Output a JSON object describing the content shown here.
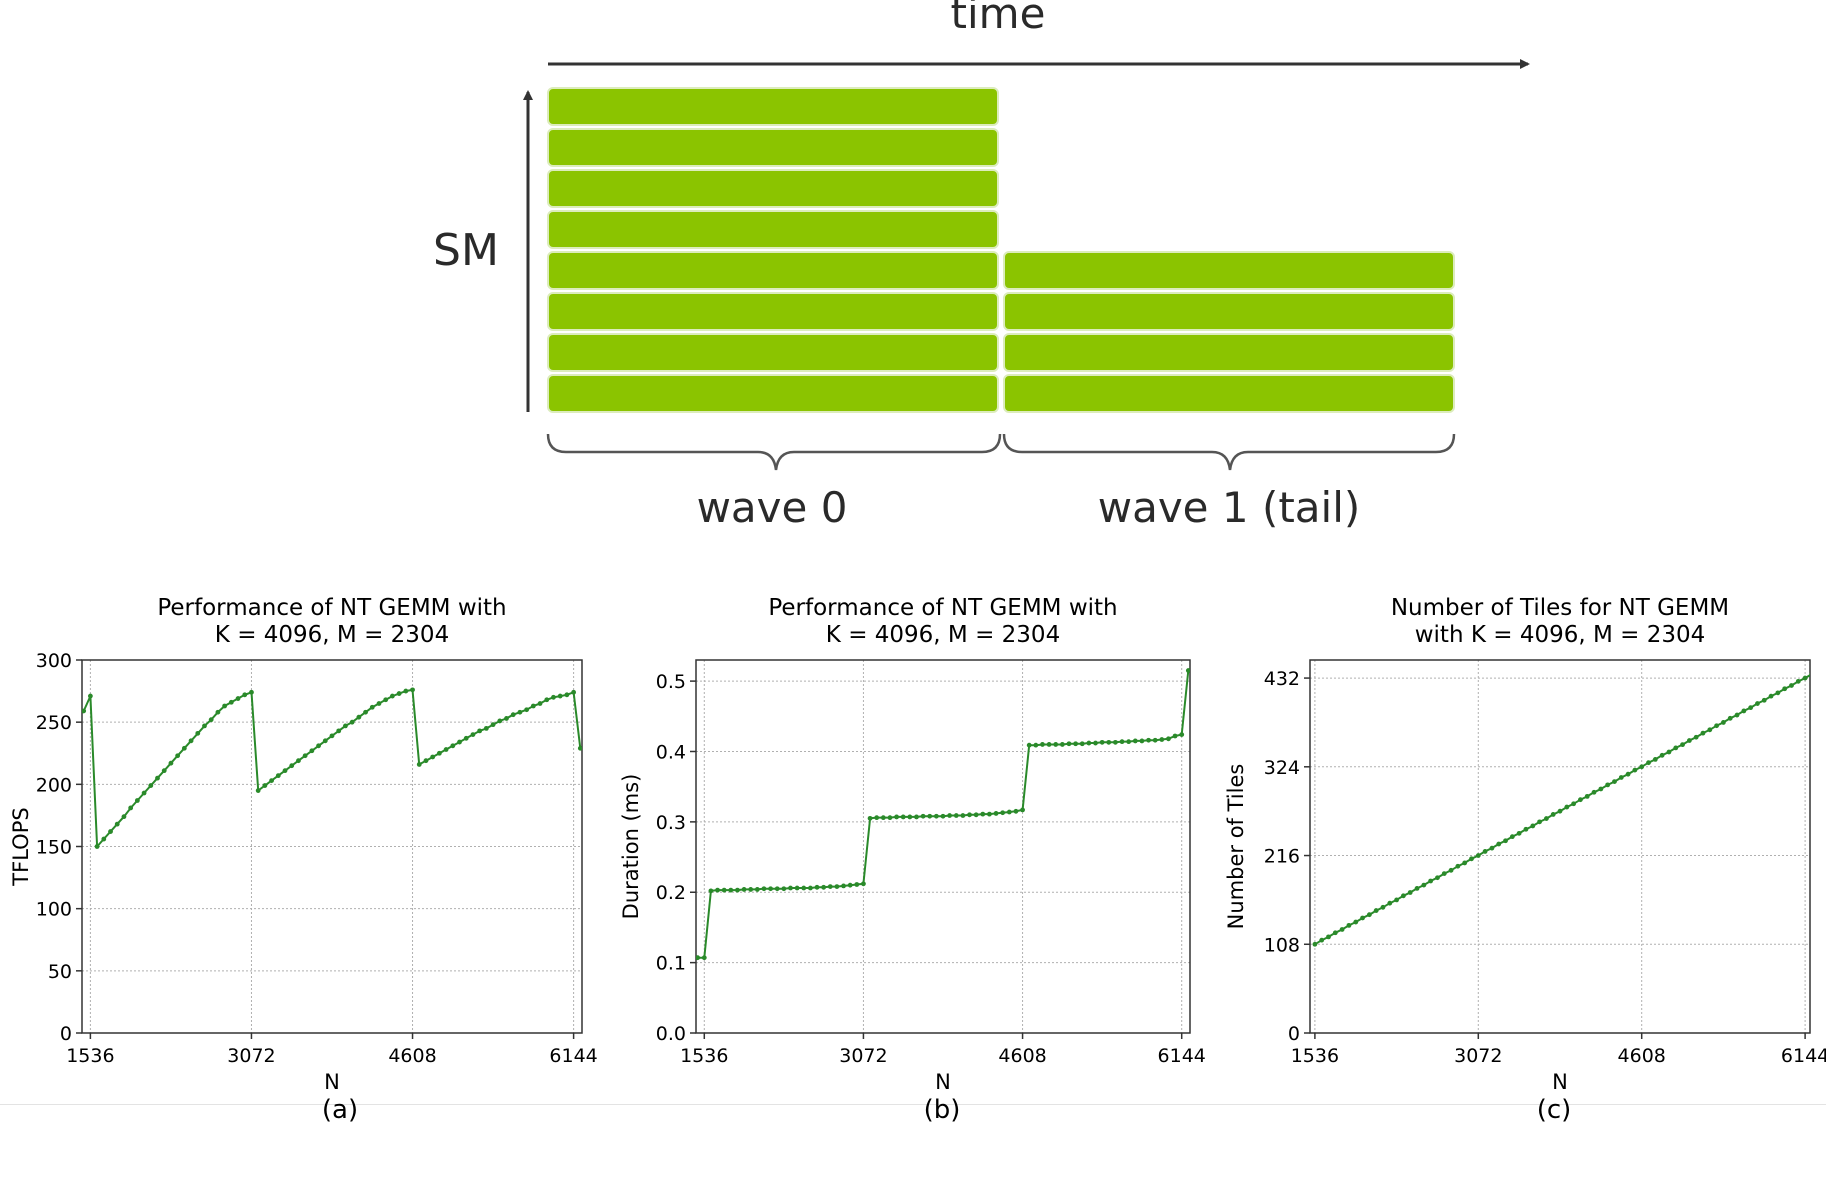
{
  "diagram": {
    "time_label": "time",
    "sm_label": "SM",
    "wave0_label": "wave 0",
    "wave1_label": "wave 1 (tail)",
    "bar_color": "#8bc400",
    "wave0_bars": 8,
    "wave1_bars": 4
  },
  "colors": {
    "line": "#2a8a2a",
    "grid": "#b0b0b0"
  },
  "captions": [
    "(a)",
    "(b)",
    "(c)"
  ],
  "chart_data": [
    {
      "type": "line",
      "title": "Performance of NT GEMM with\nK = 4096, M = 2304",
      "xlabel": "N",
      "ylabel": "TFLOPS",
      "xlim": [
        1456,
        6224
      ],
      "ylim": [
        0,
        300
      ],
      "xticks": [
        1536,
        3072,
        4608,
        6144
      ],
      "yticks": [
        0,
        50,
        100,
        150,
        200,
        250,
        300
      ],
      "ytick_labels": [
        "0",
        "50",
        "100",
        "150",
        "200",
        "250",
        "300"
      ],
      "grid": true,
      "series": [
        {
          "x": [
            1472,
            1536,
            1600,
            1664,
            1728,
            1792,
            1856,
            1920,
            1984,
            2048,
            2112,
            2176,
            2240,
            2304,
            2368,
            2432,
            2496,
            2560,
            2624,
            2688,
            2752,
            2816,
            2880,
            2944,
            3008,
            3072,
            3136,
            3200,
            3264,
            3328,
            3392,
            3456,
            3520,
            3584,
            3648,
            3712,
            3776,
            3840,
            3904,
            3968,
            4032,
            4096,
            4160,
            4224,
            4288,
            4352,
            4416,
            4480,
            4544,
            4608,
            4672,
            4736,
            4800,
            4864,
            4928,
            4992,
            5056,
            5120,
            5184,
            5248,
            5312,
            5376,
            5440,
            5504,
            5568,
            5632,
            5696,
            5760,
            5824,
            5888,
            5952,
            6016,
            6080,
            6144,
            6208
          ],
          "y": [
            259,
            271,
            150,
            156,
            162,
            168,
            174,
            181,
            187,
            193,
            199,
            205,
            211,
            217,
            223,
            229,
            235,
            241,
            247,
            252,
            258,
            263,
            266,
            269,
            272,
            274,
            195,
            199,
            203,
            207,
            211,
            215,
            219,
            223,
            227,
            231,
            235,
            239,
            243,
            247,
            250,
            254,
            258,
            262,
            265,
            268,
            271,
            273,
            275,
            276,
            216,
            219,
            222,
            225,
            228,
            231,
            234,
            237,
            240,
            243,
            245,
            248,
            251,
            253,
            256,
            258,
            260,
            263,
            265,
            268,
            270,
            271,
            272,
            274,
            229
          ]
        }
      ]
    },
    {
      "type": "line",
      "title": "Performance of NT GEMM with\nK = 4096, M = 2304",
      "xlabel": "N",
      "ylabel": "Duration (ms)",
      "xlim": [
        1456,
        6224
      ],
      "ylim": [
        0,
        0.53
      ],
      "xticks": [
        1536,
        3072,
        4608,
        6144
      ],
      "yticks": [
        0,
        0.1,
        0.2,
        0.3,
        0.4,
        0.5
      ],
      "ytick_labels": [
        "0.0",
        "0.1",
        "0.2",
        "0.3",
        "0.4",
        "0.5"
      ],
      "grid": true,
      "series": [
        {
          "x": [
            1472,
            1536,
            1600,
            1664,
            1728,
            1792,
            1856,
            1920,
            1984,
            2048,
            2112,
            2176,
            2240,
            2304,
            2368,
            2432,
            2496,
            2560,
            2624,
            2688,
            2752,
            2816,
            2880,
            2944,
            3008,
            3072,
            3136,
            3200,
            3264,
            3328,
            3392,
            3456,
            3520,
            3584,
            3648,
            3712,
            3776,
            3840,
            3904,
            3968,
            4032,
            4096,
            4160,
            4224,
            4288,
            4352,
            4416,
            4480,
            4544,
            4608,
            4672,
            4736,
            4800,
            4864,
            4928,
            4992,
            5056,
            5120,
            5184,
            5248,
            5312,
            5376,
            5440,
            5504,
            5568,
            5632,
            5696,
            5760,
            5824,
            5888,
            5952,
            6016,
            6080,
            6144,
            6208
          ],
          "y": [
            0.107,
            0.107,
            0.202,
            0.203,
            0.203,
            0.203,
            0.203,
            0.204,
            0.204,
            0.204,
            0.205,
            0.205,
            0.205,
            0.205,
            0.206,
            0.206,
            0.206,
            0.206,
            0.207,
            0.207,
            0.208,
            0.208,
            0.209,
            0.21,
            0.211,
            0.212,
            0.305,
            0.306,
            0.306,
            0.306,
            0.307,
            0.307,
            0.307,
            0.307,
            0.308,
            0.308,
            0.308,
            0.308,
            0.309,
            0.309,
            0.309,
            0.31,
            0.31,
            0.311,
            0.311,
            0.312,
            0.313,
            0.314,
            0.315,
            0.317,
            0.409,
            0.409,
            0.41,
            0.41,
            0.41,
            0.41,
            0.411,
            0.411,
            0.411,
            0.412,
            0.412,
            0.413,
            0.413,
            0.413,
            0.414,
            0.414,
            0.415,
            0.415,
            0.416,
            0.416,
            0.417,
            0.418,
            0.422,
            0.424,
            0.515
          ]
        }
      ]
    },
    {
      "type": "line",
      "title": "Number of Tiles for NT GEMM\nwith K = 4096, M = 2304",
      "xlabel": "N",
      "ylabel": "Number of Tiles",
      "xlim": [
        1490,
        6190
      ],
      "ylim": [
        0,
        454
      ],
      "xticks": [
        1536,
        3072,
        4608,
        6144
      ],
      "yticks": [
        0,
        108,
        216,
        324,
        432
      ],
      "ytick_labels": [
        "0",
        "108",
        "216",
        "324",
        "432"
      ],
      "grid": true,
      "series": [
        {
          "x": [
            1536,
            1600,
            1664,
            1728,
            1792,
            1856,
            1920,
            1984,
            2048,
            2112,
            2176,
            2240,
            2304,
            2368,
            2432,
            2496,
            2560,
            2624,
            2688,
            2752,
            2816,
            2880,
            2944,
            3008,
            3072,
            3136,
            3200,
            3264,
            3328,
            3392,
            3456,
            3520,
            3584,
            3648,
            3712,
            3776,
            3840,
            3904,
            3968,
            4032,
            4096,
            4160,
            4224,
            4288,
            4352,
            4416,
            4480,
            4544,
            4608,
            4672,
            4736,
            4800,
            4864,
            4928,
            4992,
            5056,
            5120,
            5184,
            5248,
            5312,
            5376,
            5440,
            5504,
            5568,
            5632,
            5696,
            5760,
            5824,
            5888,
            5952,
            6016,
            6080,
            6144,
            6208
          ],
          "y": [
            108,
            113,
            117,
            122,
            126,
            131,
            135,
            140,
            144,
            149,
            153,
            158,
            162,
            167,
            171,
            176,
            180,
            185,
            189,
            194,
            198,
            203,
            207,
            212,
            216,
            221,
            225,
            230,
            234,
            239,
            243,
            248,
            252,
            257,
            261,
            266,
            270,
            275,
            279,
            284,
            288,
            293,
            297,
            302,
            306,
            311,
            315,
            320,
            324,
            329,
            333,
            338,
            342,
            347,
            351,
            356,
            360,
            365,
            369,
            374,
            378,
            383,
            387,
            392,
            396,
            401,
            405,
            410,
            414,
            419,
            423,
            428,
            432,
            437
          ]
        }
      ]
    }
  ]
}
